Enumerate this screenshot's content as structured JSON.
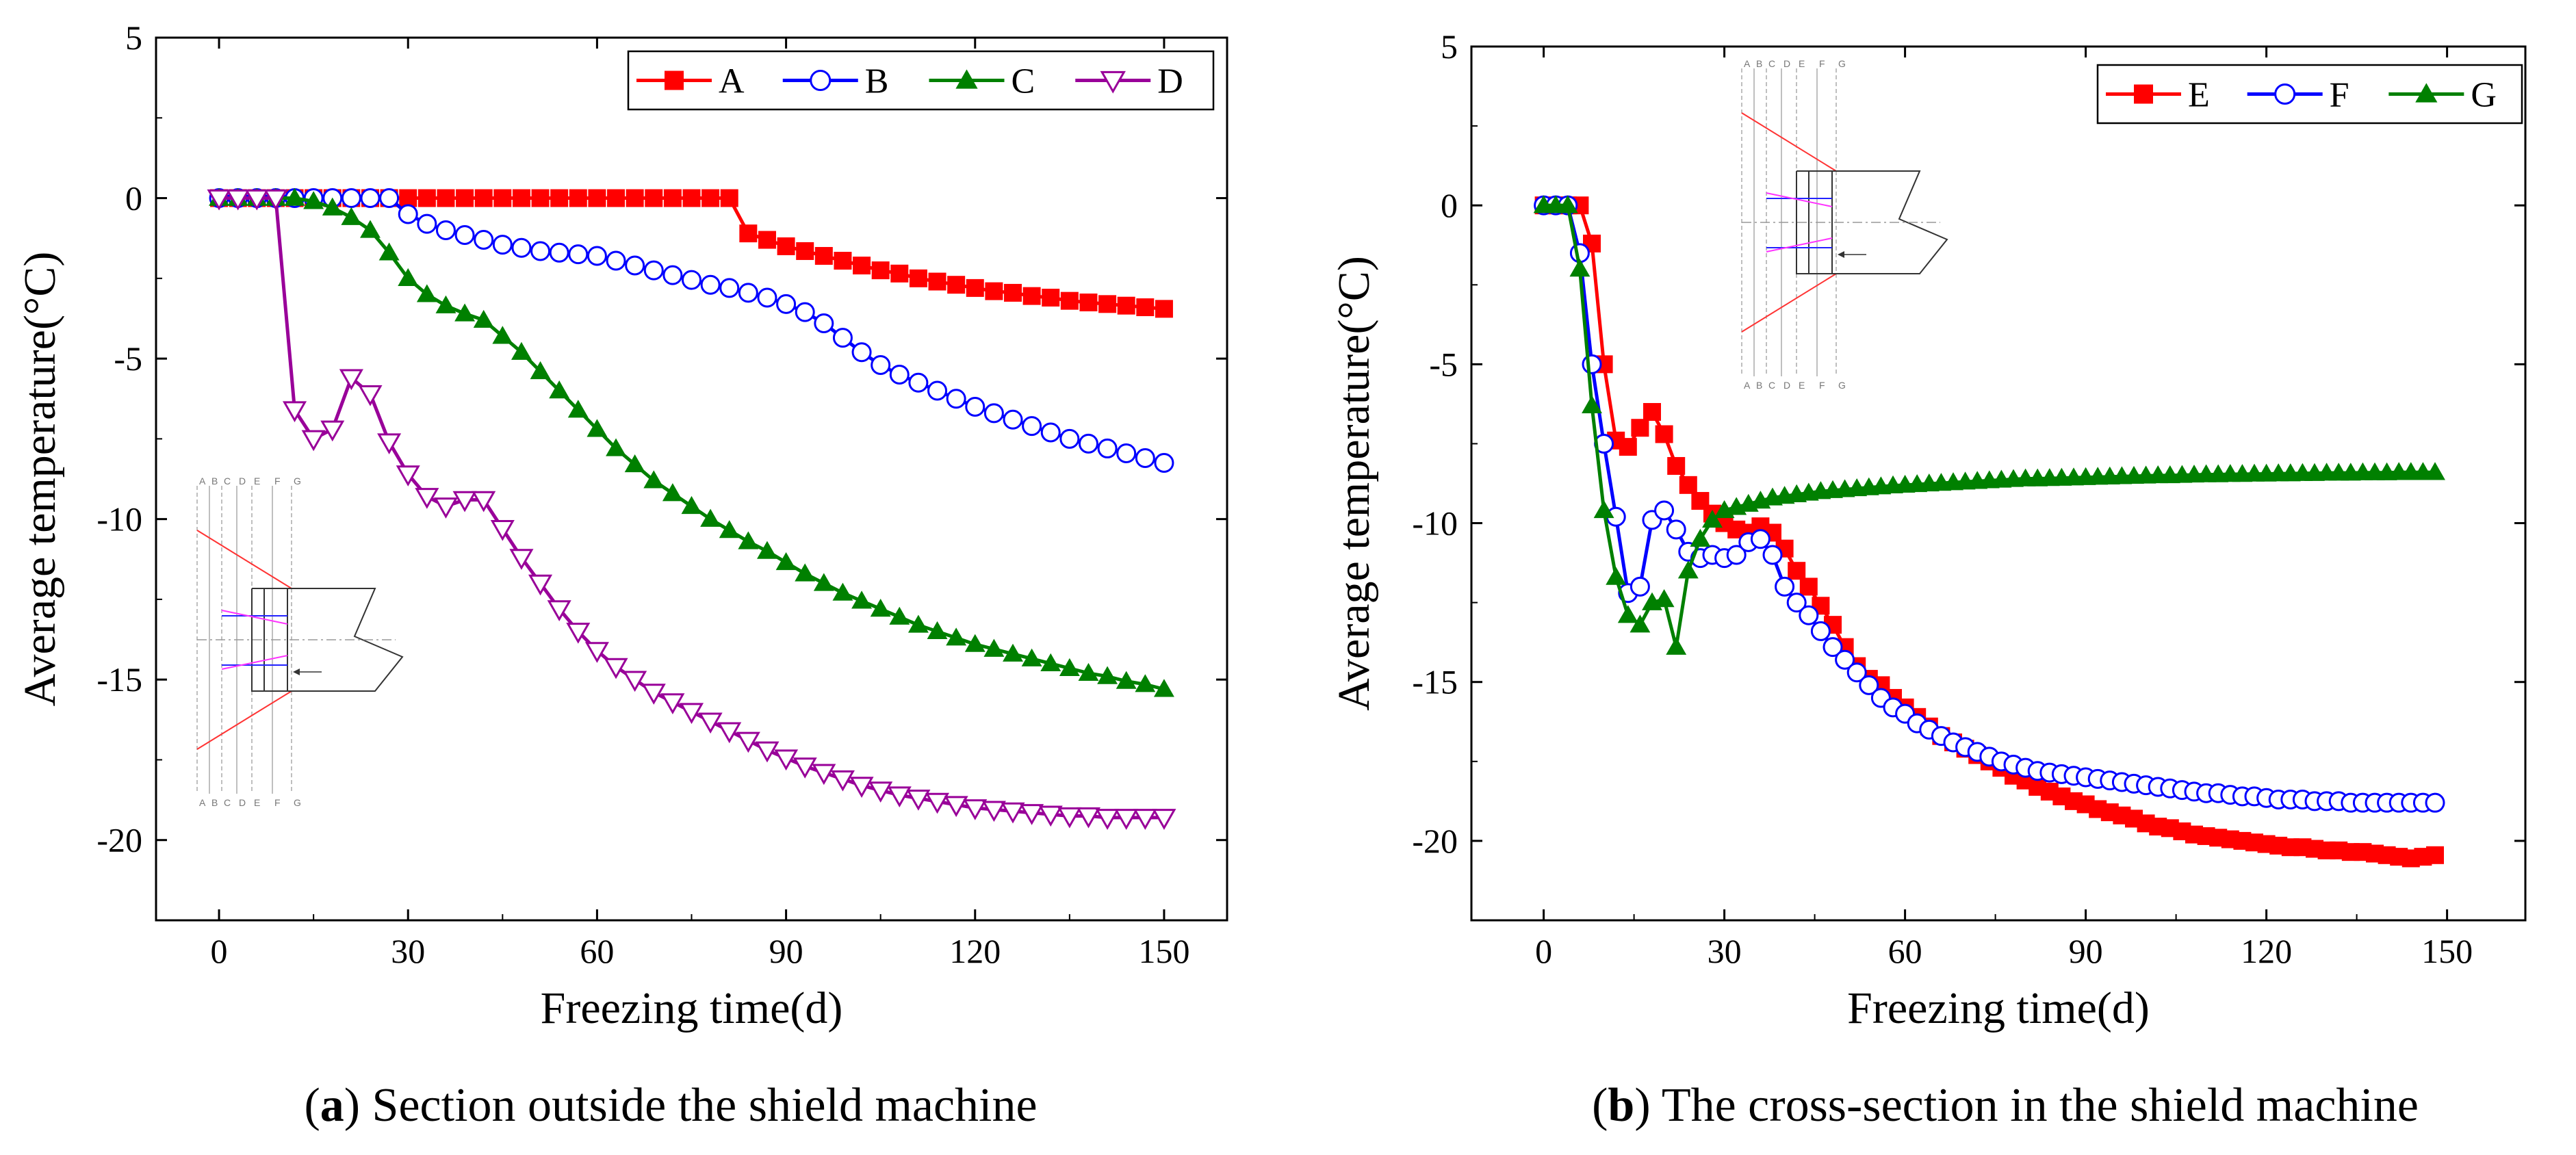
{
  "colors": {
    "A": "#ff0000",
    "B": "#0000ff",
    "C": "#008000",
    "D": "#990099",
    "E": "#ff0000",
    "F": "#0000ff",
    "G": "#008000"
  },
  "chart_data": [
    {
      "type": "line",
      "caption_letter": "a",
      "caption_text": ") Section outside the shield machine",
      "caption_open": "(",
      "xlabel": "Freezing time(d)",
      "ylabel": "Average temperature(°C)",
      "xlim": [
        -10,
        160
      ],
      "ylim": [
        -22.5,
        5
      ],
      "xticks": [
        "0",
        "30",
        "60",
        "90",
        "120",
        "150"
      ],
      "xtick_values": [
        0,
        30,
        60,
        90,
        120,
        150
      ],
      "yticks": [
        "5",
        "0",
        "-5",
        "-10",
        "-15",
        "-20"
      ],
      "ytick_values": [
        5,
        0,
        -5,
        -10,
        -15,
        -20
      ],
      "legend_position": "top-right",
      "inset_labels": [
        "A",
        "B",
        "C",
        "D",
        "E",
        "F",
        "G"
      ],
      "series": [
        {
          "name": "A",
          "marker": "square",
          "x": [
            0,
            3,
            6,
            9,
            12,
            15,
            18,
            21,
            24,
            27,
            30,
            33,
            36,
            39,
            42,
            45,
            48,
            51,
            54,
            57,
            60,
            63,
            66,
            69,
            72,
            75,
            78,
            81,
            84,
            87,
            90,
            93,
            96,
            99,
            102,
            105,
            108,
            111,
            114,
            117,
            120,
            123,
            126,
            129,
            132,
            135,
            138,
            141,
            144,
            147,
            150
          ],
          "y": [
            0,
            0,
            0,
            0,
            0,
            0,
            0,
            0,
            0,
            0,
            0,
            0,
            0,
            0,
            0,
            0,
            0,
            0,
            0,
            0,
            0,
            0,
            0,
            0,
            0,
            0,
            0,
            0,
            -1.1,
            -1.3,
            -1.5,
            -1.65,
            -1.8,
            -1.95,
            -2.1,
            -2.25,
            -2.35,
            -2.5,
            -2.6,
            -2.7,
            -2.8,
            -2.9,
            -2.95,
            -3.05,
            -3.1,
            -3.2,
            -3.25,
            -3.3,
            -3.35,
            -3.4,
            -3.45
          ]
        },
        {
          "name": "B",
          "marker": "circle",
          "x": [
            0,
            3,
            6,
            9,
            12,
            15,
            18,
            21,
            24,
            27,
            30,
            33,
            36,
            39,
            42,
            45,
            48,
            51,
            54,
            57,
            60,
            63,
            66,
            69,
            72,
            75,
            78,
            81,
            84,
            87,
            90,
            93,
            96,
            99,
            102,
            105,
            108,
            111,
            114,
            117,
            120,
            123,
            126,
            129,
            132,
            135,
            138,
            141,
            144,
            147,
            150
          ],
          "y": [
            0,
            0,
            0,
            0,
            0,
            0,
            0,
            0,
            0,
            0,
            -0.5,
            -0.8,
            -1.0,
            -1.15,
            -1.3,
            -1.45,
            -1.55,
            -1.65,
            -1.7,
            -1.75,
            -1.8,
            -1.95,
            -2.1,
            -2.25,
            -2.4,
            -2.55,
            -2.7,
            -2.8,
            -2.95,
            -3.1,
            -3.3,
            -3.55,
            -3.9,
            -4.35,
            -4.8,
            -5.2,
            -5.5,
            -5.75,
            -6.0,
            -6.25,
            -6.5,
            -6.7,
            -6.9,
            -7.1,
            -7.3,
            -7.5,
            -7.65,
            -7.8,
            -7.95,
            -8.1,
            -8.25
          ]
        },
        {
          "name": "C",
          "marker": "triangle-up",
          "x": [
            0,
            3,
            6,
            9,
            12,
            15,
            18,
            21,
            24,
            27,
            30,
            33,
            36,
            39,
            42,
            45,
            48,
            51,
            54,
            57,
            60,
            63,
            66,
            69,
            72,
            75,
            78,
            81,
            84,
            87,
            90,
            93,
            96,
            99,
            102,
            105,
            108,
            111,
            114,
            117,
            120,
            123,
            126,
            129,
            132,
            135,
            138,
            141,
            144,
            147,
            150
          ],
          "y": [
            0,
            0,
            0,
            0,
            0,
            -0.1,
            -0.3,
            -0.6,
            -1.0,
            -1.7,
            -2.5,
            -3.0,
            -3.35,
            -3.6,
            -3.8,
            -4.3,
            -4.8,
            -5.4,
            -6.0,
            -6.6,
            -7.2,
            -7.8,
            -8.3,
            -8.8,
            -9.2,
            -9.6,
            -10.0,
            -10.35,
            -10.7,
            -11.0,
            -11.35,
            -11.7,
            -12.0,
            -12.3,
            -12.55,
            -12.8,
            -13.05,
            -13.3,
            -13.5,
            -13.7,
            -13.9,
            -14.05,
            -14.2,
            -14.35,
            -14.5,
            -14.65,
            -14.8,
            -14.9,
            -15.05,
            -15.15,
            -15.3
          ]
        },
        {
          "name": "D",
          "marker": "triangle-down",
          "x": [
            0,
            3,
            6,
            9,
            12,
            15,
            18,
            21,
            24,
            27,
            30,
            33,
            36,
            39,
            42,
            45,
            48,
            51,
            54,
            57,
            60,
            63,
            66,
            69,
            72,
            75,
            78,
            81,
            84,
            87,
            90,
            93,
            96,
            99,
            102,
            105,
            108,
            111,
            114,
            117,
            120,
            123,
            126,
            129,
            132,
            135,
            138,
            141,
            144,
            147,
            150
          ],
          "y": [
            0,
            0,
            0,
            0,
            -6.6,
            -7.5,
            -7.2,
            -5.6,
            -6.1,
            -7.6,
            -8.6,
            -9.3,
            -9.6,
            -9.4,
            -9.4,
            -10.3,
            -11.2,
            -12.0,
            -12.8,
            -13.5,
            -14.1,
            -14.6,
            -15.0,
            -15.4,
            -15.7,
            -16.0,
            -16.3,
            -16.6,
            -16.9,
            -17.2,
            -17.45,
            -17.7,
            -17.9,
            -18.1,
            -18.3,
            -18.45,
            -18.6,
            -18.7,
            -18.8,
            -18.9,
            -19.0,
            -19.05,
            -19.1,
            -19.15,
            -19.2,
            -19.25,
            -19.25,
            -19.3,
            -19.3,
            -19.3,
            -19.3
          ]
        }
      ]
    },
    {
      "type": "line",
      "caption_letter": "b",
      "caption_text": ") The cross-section in the shield machine",
      "caption_open": "(",
      "xlabel": "Freezing time(d)",
      "ylabel": "Average temperature(°C)",
      "xlim": [
        -12,
        163
      ],
      "ylim": [
        -22.5,
        5
      ],
      "xticks": [
        "0",
        "30",
        "60",
        "90",
        "120",
        "150"
      ],
      "xtick_values": [
        0,
        30,
        60,
        90,
        120,
        150
      ],
      "yticks": [
        "5",
        "0",
        "-5",
        "-10",
        "-15",
        "-20"
      ],
      "ytick_values": [
        5,
        0,
        -5,
        -10,
        -15,
        -20
      ],
      "legend_position": "top-right",
      "inset_labels": [
        "A",
        "B",
        "C",
        "D",
        "E",
        "F",
        "G"
      ],
      "series": [
        {
          "name": "E",
          "marker": "square",
          "x": [
            0,
            2,
            4,
            6,
            8,
            10,
            12,
            14,
            16,
            18,
            20,
            22,
            24,
            26,
            28,
            30,
            32,
            34,
            36,
            38,
            40,
            42,
            44,
            46,
            48,
            50,
            52,
            54,
            56,
            58,
            60,
            62,
            64,
            66,
            68,
            70,
            72,
            74,
            76,
            78,
            80,
            82,
            84,
            86,
            88,
            90,
            92,
            94,
            96,
            98,
            100,
            102,
            104,
            106,
            108,
            110,
            112,
            114,
            116,
            118,
            120,
            122,
            124,
            126,
            128,
            130,
            132,
            134,
            136,
            138,
            140,
            142,
            144,
            146,
            148
          ],
          "y": [
            0,
            0,
            0,
            0,
            -1.2,
            -5.0,
            -7.4,
            -7.6,
            -7.0,
            -6.5,
            -7.2,
            -8.2,
            -8.8,
            -9.3,
            -9.7,
            -10.0,
            -10.2,
            -10.3,
            -10.1,
            -10.3,
            -10.8,
            -11.5,
            -12.0,
            -12.6,
            -13.2,
            -13.9,
            -14.5,
            -14.9,
            -15.1,
            -15.5,
            -15.8,
            -16.1,
            -16.4,
            -16.7,
            -16.9,
            -17.1,
            -17.3,
            -17.5,
            -17.7,
            -17.95,
            -18.1,
            -18.3,
            -18.45,
            -18.6,
            -18.75,
            -18.85,
            -19.0,
            -19.1,
            -19.2,
            -19.3,
            -19.45,
            -19.55,
            -19.6,
            -19.7,
            -19.8,
            -19.85,
            -19.9,
            -19.95,
            -20.0,
            -20.05,
            -20.1,
            -20.15,
            -20.2,
            -20.2,
            -20.25,
            -20.3,
            -20.3,
            -20.35,
            -20.35,
            -20.4,
            -20.45,
            -20.5,
            -20.55,
            -20.5,
            -20.45
          ]
        },
        {
          "name": "F",
          "marker": "circle",
          "x": [
            0,
            2,
            4,
            6,
            8,
            10,
            12,
            14,
            16,
            18,
            20,
            22,
            24,
            26,
            28,
            30,
            32,
            34,
            36,
            38,
            40,
            42,
            44,
            46,
            48,
            50,
            52,
            54,
            56,
            58,
            60,
            62,
            64,
            66,
            68,
            70,
            72,
            74,
            76,
            78,
            80,
            82,
            84,
            86,
            88,
            90,
            92,
            94,
            96,
            98,
            100,
            102,
            104,
            106,
            108,
            110,
            112,
            114,
            116,
            118,
            120,
            122,
            124,
            126,
            128,
            130,
            132,
            134,
            136,
            138,
            140,
            142,
            144,
            146,
            148
          ],
          "y": [
            0,
            0,
            0,
            -1.5,
            -5.0,
            -7.5,
            -9.8,
            -12.2,
            -12.0,
            -9.9,
            -9.6,
            -10.2,
            -10.9,
            -11.1,
            -11.0,
            -11.1,
            -11.0,
            -10.6,
            -10.5,
            -11.0,
            -12.0,
            -12.5,
            -12.9,
            -13.4,
            -13.9,
            -14.3,
            -14.7,
            -15.1,
            -15.5,
            -15.8,
            -16.0,
            -16.3,
            -16.5,
            -16.7,
            -16.9,
            -17.05,
            -17.2,
            -17.35,
            -17.5,
            -17.6,
            -17.7,
            -17.8,
            -17.85,
            -17.9,
            -17.95,
            -18.0,
            -18.05,
            -18.1,
            -18.15,
            -18.2,
            -18.25,
            -18.3,
            -18.35,
            -18.4,
            -18.45,
            -18.5,
            -18.5,
            -18.55,
            -18.6,
            -18.6,
            -18.65,
            -18.7,
            -18.7,
            -18.7,
            -18.75,
            -18.75,
            -18.75,
            -18.8,
            -18.8,
            -18.8,
            -18.8,
            -18.8,
            -18.8,
            -18.8,
            -18.8
          ]
        },
        {
          "name": "G",
          "marker": "triangle-up",
          "x": [
            0,
            2,
            4,
            6,
            8,
            10,
            12,
            14,
            16,
            18,
            20,
            22,
            24,
            26,
            28,
            30,
            32,
            34,
            36,
            38,
            40,
            42,
            44,
            46,
            48,
            50,
            52,
            54,
            56,
            58,
            60,
            62,
            64,
            66,
            68,
            70,
            72,
            74,
            76,
            78,
            80,
            82,
            84,
            86,
            88,
            90,
            92,
            94,
            96,
            98,
            100,
            102,
            104,
            106,
            108,
            110,
            112,
            114,
            116,
            118,
            120,
            122,
            124,
            126,
            128,
            130,
            132,
            134,
            136,
            138,
            140,
            142,
            144,
            146,
            148
          ],
          "y": [
            0,
            0,
            0,
            -2.0,
            -6.3,
            -9.6,
            -11.7,
            -12.9,
            -13.2,
            -12.5,
            -12.4,
            -13.9,
            -11.5,
            -10.5,
            -9.9,
            -9.6,
            -9.5,
            -9.4,
            -9.3,
            -9.2,
            -9.15,
            -9.1,
            -9.05,
            -9.0,
            -8.97,
            -8.94,
            -8.91,
            -8.88,
            -8.85,
            -8.82,
            -8.8,
            -8.78,
            -8.76,
            -8.74,
            -8.72,
            -8.7,
            -8.68,
            -8.66,
            -8.64,
            -8.62,
            -8.6,
            -8.6,
            -8.59,
            -8.58,
            -8.57,
            -8.56,
            -8.55,
            -8.54,
            -8.53,
            -8.52,
            -8.51,
            -8.5,
            -8.5,
            -8.49,
            -8.48,
            -8.47,
            -8.47,
            -8.46,
            -8.46,
            -8.45,
            -8.45,
            -8.44,
            -8.44,
            -8.43,
            -8.43,
            -8.42,
            -8.42,
            -8.42,
            -8.41,
            -8.41,
            -8.41,
            -8.4,
            -8.4,
            -8.4,
            -8.4
          ]
        }
      ]
    }
  ]
}
